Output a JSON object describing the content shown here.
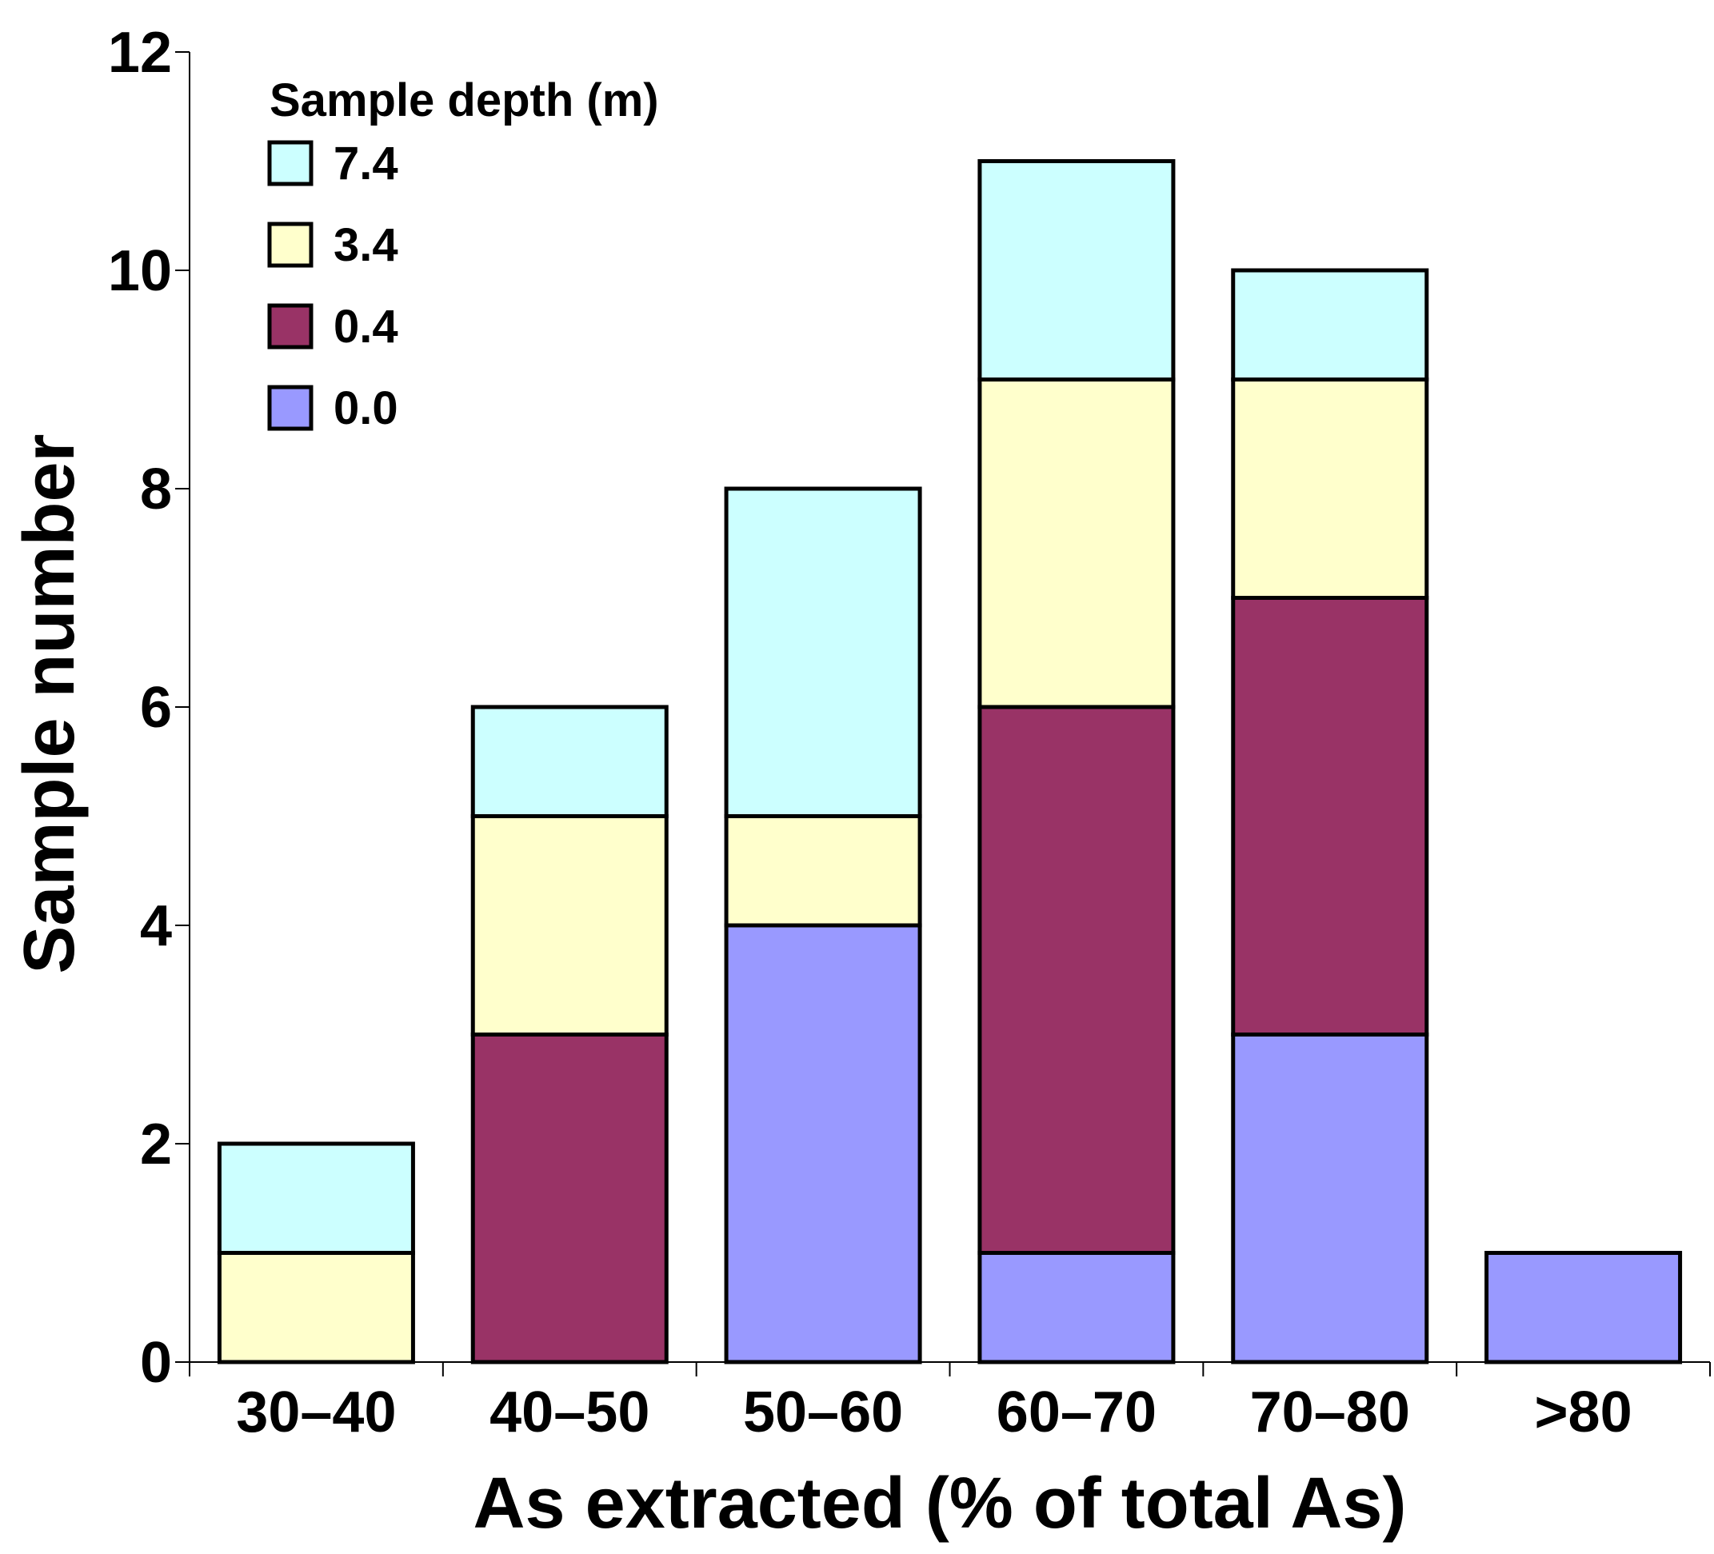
{
  "chart_data": {
    "type": "bar",
    "stacked": true,
    "title": "",
    "xlabel": "As extracted (% of total As)",
    "ylabel": "Sample number",
    "ylim": [
      0,
      12
    ],
    "yticks": [
      0,
      2,
      4,
      6,
      8,
      10,
      12
    ],
    "categories": [
      "30–40",
      "40–50",
      "50–60",
      "60–70",
      "70–80",
      ">80"
    ],
    "legend_title": "Sample depth (m)",
    "legend_position": "top-left",
    "series": [
      {
        "name": "0.0",
        "color": "#9999ff",
        "values": [
          0,
          0,
          4,
          1,
          3,
          1
        ]
      },
      {
        "name": "0.4",
        "color": "#993366",
        "values": [
          0,
          3,
          0,
          5,
          4,
          0
        ]
      },
      {
        "name": "3.4",
        "color": "#ffffcc",
        "values": [
          1,
          2,
          1,
          3,
          2,
          0
        ]
      },
      {
        "name": "7.4",
        "color": "#ccffff",
        "values": [
          1,
          1,
          3,
          2,
          1,
          0
        ]
      }
    ]
  }
}
